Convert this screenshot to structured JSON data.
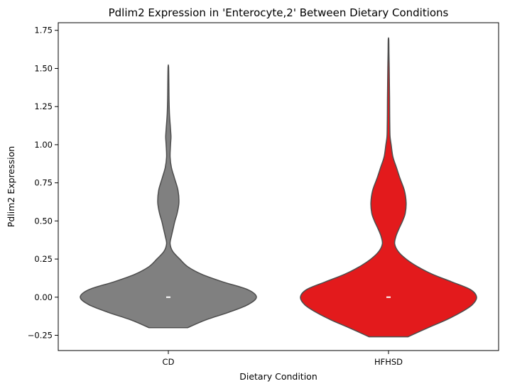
{
  "chart_data": {
    "type": "violin",
    "title": "Pdlim2 Expression in 'Enterocyte,2' Between Dietary Conditions",
    "xlabel": "Dietary Condition",
    "ylabel": "Pdlim2 Expression",
    "ylim": [
      -0.35,
      1.8
    ],
    "yticks": [
      -0.25,
      0.0,
      0.25,
      0.5,
      0.75,
      1.0,
      1.25,
      1.5,
      1.75
    ],
    "ytick_labels": [
      "−0.25",
      "0.00",
      "0.25",
      "0.50",
      "0.75",
      "1.00",
      "1.25",
      "1.50",
      "1.75"
    ],
    "grid": false,
    "categories": [
      "CD",
      "HFHSD"
    ],
    "series": [
      {
        "category": "CD",
        "color": "#808080",
        "median": 0.0,
        "min": -0.2,
        "max": 1.51,
        "density_profile": [
          [
            -0.2,
            0.22
          ],
          [
            -0.15,
            0.42
          ],
          [
            -0.1,
            0.68
          ],
          [
            -0.05,
            0.9
          ],
          [
            0.0,
            1.0
          ],
          [
            0.05,
            0.9
          ],
          [
            0.1,
            0.62
          ],
          [
            0.15,
            0.38
          ],
          [
            0.2,
            0.22
          ],
          [
            0.25,
            0.13
          ],
          [
            0.3,
            0.05
          ],
          [
            0.35,
            0.02
          ],
          [
            0.4,
            0.035
          ],
          [
            0.45,
            0.055
          ],
          [
            0.5,
            0.075
          ],
          [
            0.55,
            0.1
          ],
          [
            0.62,
            0.12
          ],
          [
            0.7,
            0.11
          ],
          [
            0.78,
            0.07
          ],
          [
            0.85,
            0.035
          ],
          [
            0.92,
            0.02
          ],
          [
            1.0,
            0.025
          ],
          [
            1.05,
            0.03
          ],
          [
            1.1,
            0.025
          ],
          [
            1.2,
            0.013
          ],
          [
            1.3,
            0.008
          ],
          [
            1.4,
            0.006
          ],
          [
            1.51,
            0.003
          ]
        ]
      },
      {
        "category": "HFHSD",
        "color": "#e31a1c",
        "median": 0.0,
        "min": -0.26,
        "max": 1.69,
        "density_profile": [
          [
            -0.26,
            0.22
          ],
          [
            -0.2,
            0.45
          ],
          [
            -0.15,
            0.65
          ],
          [
            -0.1,
            0.82
          ],
          [
            -0.05,
            0.95
          ],
          [
            0.0,
            1.0
          ],
          [
            0.05,
            0.93
          ],
          [
            0.1,
            0.72
          ],
          [
            0.15,
            0.5
          ],
          [
            0.2,
            0.33
          ],
          [
            0.25,
            0.2
          ],
          [
            0.3,
            0.11
          ],
          [
            0.35,
            0.07
          ],
          [
            0.4,
            0.085
          ],
          [
            0.45,
            0.12
          ],
          [
            0.5,
            0.16
          ],
          [
            0.55,
            0.19
          ],
          [
            0.62,
            0.2
          ],
          [
            0.7,
            0.18
          ],
          [
            0.78,
            0.13
          ],
          [
            0.85,
            0.09
          ],
          [
            0.92,
            0.05
          ],
          [
            1.0,
            0.03
          ],
          [
            1.05,
            0.018
          ],
          [
            1.1,
            0.015
          ],
          [
            1.2,
            0.013
          ],
          [
            1.3,
            0.012
          ],
          [
            1.4,
            0.01
          ],
          [
            1.5,
            0.008
          ],
          [
            1.6,
            0.005
          ],
          [
            1.69,
            0.003
          ]
        ]
      }
    ]
  }
}
